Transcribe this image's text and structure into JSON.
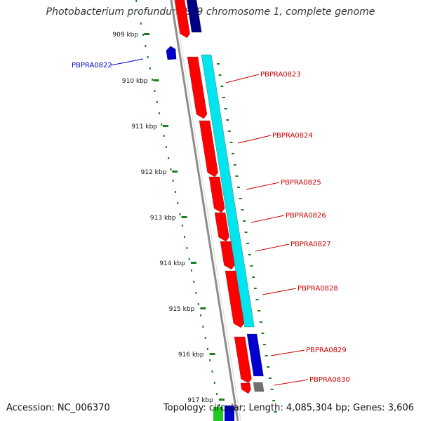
{
  "title": "Photobacterium profundum SS9 chromosome 1, complete genome",
  "footer": {
    "accession": "Accession: NC_006370",
    "topology": "Topology: circular; Length: 4,085,304 bp; Genes: 3,606"
  },
  "scale_labels": [
    "909 kbp",
    "910 kbp",
    "911 kbp",
    "912 kbp",
    "913 kbp",
    "914 kbp",
    "915 kbp",
    "916 kbp",
    "917 kbp"
  ],
  "colors": {
    "forward_cds": "#ff0000",
    "reverse_cds": "#0000cc",
    "operon_band": "#00e5ee",
    "backbone": "#8c8c8c",
    "ticks": "#1e7d1e",
    "label_forward": "#cc0000",
    "label_reverse": "#0000cc"
  },
  "genes": [
    {
      "name": "PBPRA0822",
      "strand": "reverse"
    },
    {
      "name": "PBPRA0823",
      "strand": "forward"
    },
    {
      "name": "PBPRA0824",
      "strand": "forward"
    },
    {
      "name": "PBPRA0825",
      "strand": "forward"
    },
    {
      "name": "PBPRA0826",
      "strand": "forward"
    },
    {
      "name": "PBPRA0827",
      "strand": "forward"
    },
    {
      "name": "PBPRA0828",
      "strand": "forward"
    },
    {
      "name": "PBPRA0829",
      "strand": "forward"
    },
    {
      "name": "PBPRA0830",
      "strand": "forward"
    }
  ]
}
